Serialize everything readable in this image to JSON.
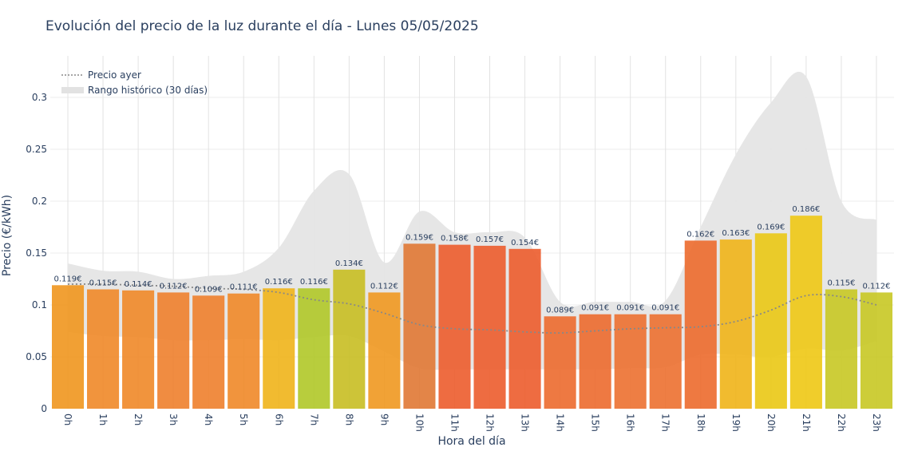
{
  "chart_data": {
    "type": "bar",
    "title": "Evolución del precio de la luz durante el día - Lunes 05/05/2025",
    "xlabel": "Hora del día",
    "ylabel": "Precio (€/kWh)",
    "ylim": [
      0,
      0.34
    ],
    "y_ticks": [
      0,
      0.05,
      0.1,
      0.15,
      0.2,
      0.25,
      0.3
    ],
    "y_tick_labels": [
      "0",
      "0.05",
      "0.1",
      "0.15",
      "0.2",
      "0.25",
      "0.3"
    ],
    "grid": true,
    "legend_position": "top-left",
    "categories": [
      "0h",
      "1h",
      "2h",
      "3h",
      "4h",
      "5h",
      "6h",
      "7h",
      "8h",
      "9h",
      "10h",
      "11h",
      "12h",
      "13h",
      "14h",
      "15h",
      "16h",
      "17h",
      "18h",
      "19h",
      "20h",
      "21h",
      "22h",
      "23h"
    ],
    "series": [
      {
        "values": [
          0.119,
          0.115,
          0.114,
          0.112,
          0.109,
          0.111,
          0.116,
          0.116,
          0.134,
          0.112,
          0.159,
          0.158,
          0.157,
          0.154,
          0.089,
          0.091,
          0.091,
          0.091,
          0.162,
          0.163,
          0.169,
          0.186,
          0.115,
          0.112
        ],
        "data_labels": [
          "0.119€",
          "0.115€",
          "0.114€",
          "0.112€",
          "0.109€",
          "0.111€",
          "0.116€",
          "0.116€",
          "0.134€",
          "0.112€",
          "0.159€",
          "0.158€",
          "0.157€",
          "0.154€",
          "0.089€",
          "0.091€",
          "0.091€",
          "0.091€",
          "0.162€",
          "0.163€",
          "0.169€",
          "0.186€",
          "0.115€",
          "0.112€"
        ],
        "colors": [
          "#f0961e",
          "#f08828",
          "#f08828",
          "#ee7f2c",
          "#ee7f2c",
          "#f08828",
          "#f0b41a",
          "#b0c828",
          "#c8be22",
          "#f09820",
          "#e07834",
          "#ec5c2c",
          "#ec5c2c",
          "#ec5c2c",
          "#ec6a2e",
          "#ec6a2e",
          "#ec7030",
          "#ec7030",
          "#ec6a2c",
          "#f0b418",
          "#eac814",
          "#eec814",
          "#c8c824",
          "#c8c824"
        ]
      },
      {
        "name": "Precio ayer",
        "line_style": "dotted",
        "color": "#888888",
        "values": [
          0.12,
          0.12,
          0.119,
          0.118,
          0.116,
          0.115,
          0.112,
          0.105,
          0.101,
          0.092,
          0.081,
          0.077,
          0.076,
          0.074,
          0.073,
          0.075,
          0.077,
          0.078,
          0.079,
          0.084,
          0.095,
          0.109,
          0.108,
          0.1
        ]
      },
      {
        "name": "Rango histórico (30 días)",
        "type": "area_range",
        "color": "#e5e5e5",
        "upper": [
          0.14,
          0.133,
          0.132,
          0.125,
          0.128,
          0.132,
          0.155,
          0.21,
          0.226,
          0.141,
          0.19,
          0.17,
          0.17,
          0.165,
          0.103,
          0.103,
          0.103,
          0.104,
          0.175,
          0.245,
          0.295,
          0.32,
          0.2,
          0.182
        ],
        "lower": [
          0.074,
          0.07,
          0.069,
          0.066,
          0.066,
          0.067,
          0.066,
          0.069,
          0.07,
          0.055,
          0.039,
          0.038,
          0.038,
          0.038,
          0.038,
          0.038,
          0.039,
          0.04,
          0.052,
          0.052,
          0.05,
          0.058,
          0.056,
          0.065
        ]
      }
    ]
  }
}
